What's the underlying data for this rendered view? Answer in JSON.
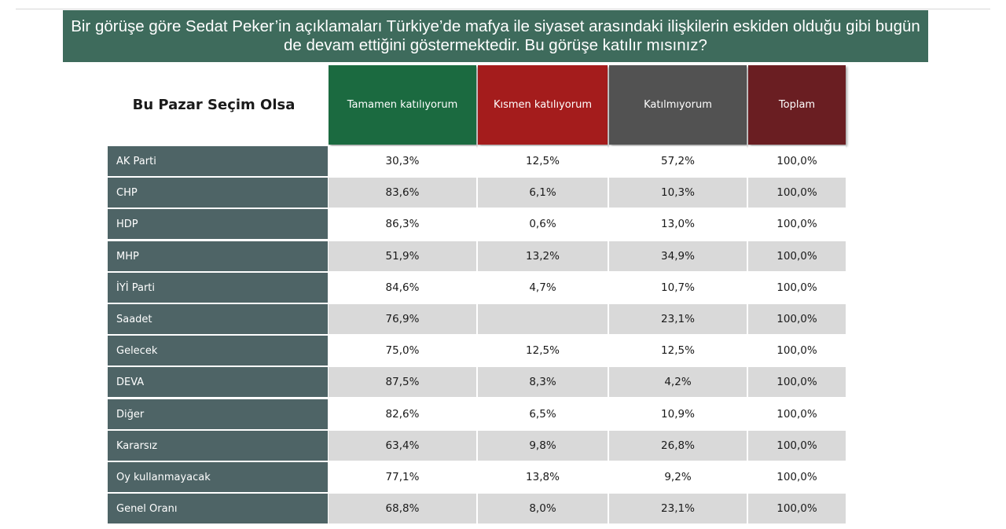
{
  "title": "Bir görüşe göre Sedat Peker’in açıklamaları Türkiye’de mafya ile siyaset arasındaki ilişkilerin eskiden olduğu gibi bugün de devam ettiğini göstermektedir. Bu görüşe katılır mısınız?",
  "colors": {
    "banner": "#3e6b5c",
    "row_label_bg": "#4e6466",
    "stripe": "#d9d9d9",
    "col_tamamen": "#1b6a40",
    "col_kismen": "#a41c1c",
    "col_katilmiyorum": "#525252",
    "col_toplam": "#6a1e22"
  },
  "chart_data": {
    "type": "table",
    "title": "Bir görüşe göre Sedat Peker’in açıklamaları Türkiye’de mafya ile siyaset arasındaki ilişkilerin eskiden olduğu gibi bugün de devam ettiğini göstermektedir. Bu görüşe katılır mısınız?",
    "row_header": "Bu Pazar Seçim Olsa",
    "columns": [
      "Tamamen katılıyorum",
      "Kısmen katılıyorum",
      "Katılmıyorum",
      "Toplam"
    ],
    "rows": [
      {
        "label": "AK Parti",
        "values": [
          "30,3%",
          "12,5%",
          "57,2%",
          "100,0%"
        ]
      },
      {
        "label": "CHP",
        "values": [
          "83,6%",
          "6,1%",
          "10,3%",
          "100,0%"
        ]
      },
      {
        "label": "HDP",
        "values": [
          "86,3%",
          "0,6%",
          "13,0%",
          "100,0%"
        ]
      },
      {
        "label": "MHP",
        "values": [
          "51,9%",
          "13,2%",
          "34,9%",
          "100,0%"
        ]
      },
      {
        "label": "İYİ Parti",
        "values": [
          "84,6%",
          "4,7%",
          "10,7%",
          "100,0%"
        ]
      },
      {
        "label": "Saadet",
        "values": [
          "76,9%",
          "",
          "23,1%",
          "100,0%"
        ]
      },
      {
        "label": "Gelecek",
        "values": [
          "75,0%",
          "12,5%",
          "12,5%",
          "100,0%"
        ]
      },
      {
        "label": "DEVA",
        "values": [
          "87,5%",
          "8,3%",
          "4,2%",
          "100,0%"
        ]
      },
      {
        "label": "Diğer",
        "values": [
          "82,6%",
          "6,5%",
          "10,9%",
          "100,0%"
        ]
      },
      {
        "label": "Kararsız",
        "values": [
          "63,4%",
          "9,8%",
          "26,8%",
          "100,0%"
        ]
      },
      {
        "label": "Oy kullanmayacak",
        "values": [
          "77,1%",
          "13,8%",
          "9,2%",
          "100,0%"
        ]
      },
      {
        "label": "Genel Oranı",
        "values": [
          "68,8%",
          "8,0%",
          "23,1%",
          "100,0%"
        ]
      }
    ]
  }
}
